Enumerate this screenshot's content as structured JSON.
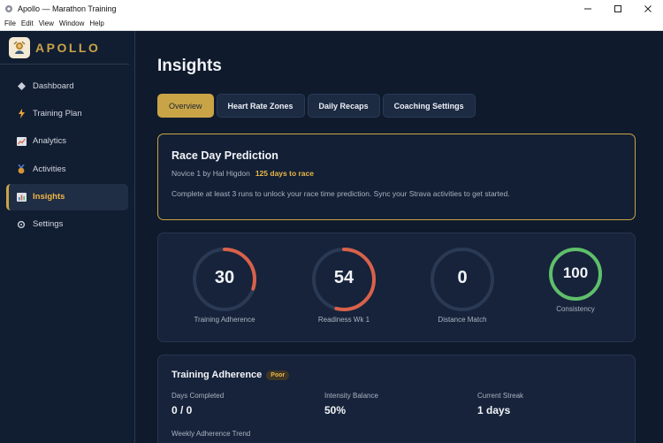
{
  "window": {
    "title": "Apollo — Marathon Training",
    "controls": [
      "minimize",
      "maximize",
      "close"
    ]
  },
  "menu": [
    "File",
    "Edit",
    "View",
    "Window",
    "Help"
  ],
  "brand": {
    "name": "APOLLO",
    "accent": "#c9a447"
  },
  "nav": [
    {
      "label": "Dashboard",
      "icon": "diamond-icon"
    },
    {
      "label": "Training Plan",
      "icon": "lightning-icon"
    },
    {
      "label": "Analytics",
      "icon": "chart-icon"
    },
    {
      "label": "Activities",
      "icon": "medal-icon"
    },
    {
      "label": "Insights",
      "icon": "bar-chart-icon",
      "active": true
    },
    {
      "label": "Settings",
      "icon": "gear-icon"
    }
  ],
  "page": {
    "title": "Insights"
  },
  "tabs": [
    {
      "label": "Overview",
      "active": true
    },
    {
      "label": "Heart Rate Zones"
    },
    {
      "label": "Daily Recaps"
    },
    {
      "label": "Coaching Settings"
    }
  ],
  "prediction": {
    "title": "Race Day Prediction",
    "plan": "Novice 1 by Hal Higdon",
    "days_to_race": "125 days to race",
    "message": "Complete at least 3 runs to unlock your race time prediction. Sync your Strava activities to get started."
  },
  "gauges": [
    {
      "value": "30",
      "label": "Training Adherence",
      "percent": 30,
      "color": "#d9614a"
    },
    {
      "value": "54",
      "label": "Readiness Wk 1",
      "percent": 54,
      "color": "#d9614a"
    },
    {
      "value": "0",
      "label": "Distance Match",
      "percent": 0,
      "color": "#d9614a"
    },
    {
      "value": "100",
      "label": "Consistency",
      "percent": 100,
      "color": "#5fbf6a"
    }
  ],
  "adherence": {
    "title": "Training Adherence",
    "badge": "Poor",
    "stats": [
      {
        "label": "Days Completed",
        "value": "0 / 0"
      },
      {
        "label": "Intensity Balance",
        "value": "50%"
      },
      {
        "label": "Current Streak",
        "value": "1 days"
      }
    ],
    "trend_label": "Weekly Adherence Trend"
  }
}
